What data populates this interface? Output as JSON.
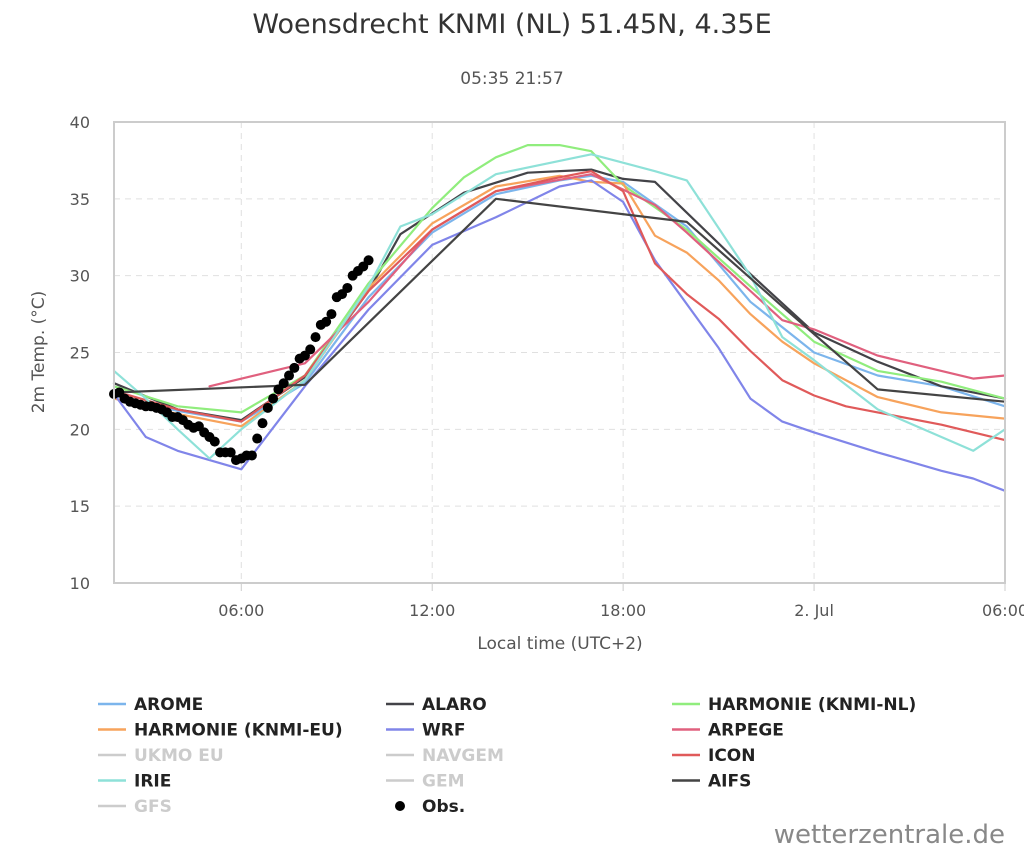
{
  "chart_data": {
    "type": "line",
    "title": "Woensdrecht KNMI (NL) 51.45N, 4.35E",
    "subtitle": "05:35 21:57",
    "xlabel": "Local time (UTC+2)",
    "ylabel": "2m Temp. (°C)",
    "ylim": [
      10,
      40
    ],
    "xlim": [
      "2025-07-01T02:00",
      "2025-07-02T06:00"
    ],
    "x_ticks": [
      {
        "label": "06:00",
        "at": "2025-07-01T06:00"
      },
      {
        "label": "12:00",
        "at": "2025-07-01T12:00"
      },
      {
        "label": "18:00",
        "at": "2025-07-01T18:00"
      },
      {
        "label": "2. Jul",
        "at": "2025-07-02T00:00"
      },
      {
        "label": "06:00",
        "at": "2025-07-02T06:00"
      }
    ],
    "y_ticks": [
      10,
      15,
      20,
      25,
      30,
      35,
      40
    ],
    "grid": true,
    "legend_position": "bottom",
    "credits": "wetterzentrale.de",
    "series": [
      {
        "name": "AROME",
        "color": "#7cb5ec",
        "visible": true,
        "points": [
          [
            "2025-07-01T02:00",
            22.2
          ],
          [
            "2025-07-01T04:00",
            21.2
          ],
          [
            "2025-07-01T06:00",
            20.5
          ],
          [
            "2025-07-01T08:00",
            23.0
          ],
          [
            "2025-07-01T10:00",
            28.6
          ],
          [
            "2025-07-01T12:00",
            32.8
          ],
          [
            "2025-07-01T14:00",
            35.3
          ],
          [
            "2025-07-01T16:00",
            36.2
          ],
          [
            "2025-07-01T17:00",
            36.5
          ],
          [
            "2025-07-01T18:00",
            36.1
          ],
          [
            "2025-07-01T20:00",
            33.2
          ],
          [
            "2025-07-01T22:00",
            28.3
          ],
          [
            "2025-07-02T00:00",
            25.0
          ],
          [
            "2025-07-02T02:00",
            23.5
          ],
          [
            "2025-07-02T04:00",
            22.8
          ],
          [
            "2025-07-02T06:00",
            21.5
          ]
        ]
      },
      {
        "name": "ALARO",
        "color": "#434348",
        "visible": true,
        "points": [
          [
            "2025-07-01T02:00",
            23.0
          ],
          [
            "2025-07-01T04:00",
            21.3
          ],
          [
            "2025-07-01T06:00",
            20.6
          ],
          [
            "2025-07-01T08:00",
            23.4
          ],
          [
            "2025-07-01T10:00",
            29.0
          ],
          [
            "2025-07-01T11:00",
            32.7
          ],
          [
            "2025-07-01T13:00",
            35.4
          ],
          [
            "2025-07-01T15:00",
            36.7
          ],
          [
            "2025-07-01T17:00",
            36.9
          ],
          [
            "2025-07-01T18:00",
            36.3
          ],
          [
            "2025-07-01T19:00",
            36.1
          ],
          [
            "2025-07-01T20:00",
            34.1
          ],
          [
            "2025-07-01T22:00",
            30.1
          ],
          [
            "2025-07-02T00:00",
            26.3
          ],
          [
            "2025-07-02T02:00",
            24.4
          ],
          [
            "2025-07-02T04:00",
            22.8
          ],
          [
            "2025-07-02T06:00",
            22.0
          ]
        ]
      },
      {
        "name": "HARMONIE (KNMI-NL)",
        "color": "#90ed7d",
        "visible": true,
        "points": [
          [
            "2025-07-01T02:00",
            22.8
          ],
          [
            "2025-07-01T04:00",
            21.5
          ],
          [
            "2025-07-01T06:00",
            21.1
          ],
          [
            "2025-07-01T08:00",
            23.5
          ],
          [
            "2025-07-01T10:00",
            29.5
          ],
          [
            "2025-07-01T12:00",
            34.4
          ],
          [
            "2025-07-01T13:00",
            36.4
          ],
          [
            "2025-07-01T14:00",
            37.7
          ],
          [
            "2025-07-01T15:00",
            38.5
          ],
          [
            "2025-07-01T16:00",
            38.5
          ],
          [
            "2025-07-01T17:00",
            38.1
          ],
          [
            "2025-07-01T18:00",
            35.9
          ],
          [
            "2025-07-01T20:00",
            33.0
          ],
          [
            "2025-07-01T22:00",
            29.3
          ],
          [
            "2025-07-02T00:00",
            25.7
          ],
          [
            "2025-07-02T02:00",
            23.8
          ],
          [
            "2025-07-02T04:00",
            23.1
          ],
          [
            "2025-07-02T06:00",
            22.0
          ]
        ]
      },
      {
        "name": "HARMONIE (KNMI-EU)",
        "color": "#f7a35c",
        "visible": true,
        "points": [
          [
            "2025-07-01T02:00",
            22.0
          ],
          [
            "2025-07-01T04:00",
            21.0
          ],
          [
            "2025-07-01T06:00",
            20.2
          ],
          [
            "2025-07-01T08:00",
            23.2
          ],
          [
            "2025-07-01T10:00",
            29.2
          ],
          [
            "2025-07-01T12:00",
            33.4
          ],
          [
            "2025-07-01T14:00",
            35.8
          ],
          [
            "2025-07-01T16:00",
            36.5
          ],
          [
            "2025-07-01T17:00",
            36.1
          ],
          [
            "2025-07-01T18:00",
            36.0
          ],
          [
            "2025-07-01T19:00",
            32.6
          ],
          [
            "2025-07-01T20:00",
            31.5
          ],
          [
            "2025-07-01T21:00",
            29.7
          ],
          [
            "2025-07-01T22:00",
            27.5
          ],
          [
            "2025-07-01T23:00",
            25.7
          ],
          [
            "2025-07-02T00:00",
            24.3
          ],
          [
            "2025-07-02T02:00",
            22.1
          ],
          [
            "2025-07-02T04:00",
            21.1
          ],
          [
            "2025-07-02T06:00",
            20.7
          ]
        ]
      },
      {
        "name": "WRF",
        "color": "#8085e9",
        "visible": true,
        "points": [
          [
            "2025-07-01T02:00",
            22.3
          ],
          [
            "2025-07-01T03:00",
            19.5
          ],
          [
            "2025-07-01T04:00",
            18.6
          ],
          [
            "2025-07-01T06:00",
            17.4
          ],
          [
            "2025-07-01T08:00",
            22.8
          ],
          [
            "2025-07-01T10:00",
            27.8
          ],
          [
            "2025-07-01T12:00",
            32.0
          ],
          [
            "2025-07-01T14:00",
            33.8
          ],
          [
            "2025-07-01T16:00",
            35.8
          ],
          [
            "2025-07-01T17:00",
            36.2
          ],
          [
            "2025-07-01T18:00",
            34.8
          ],
          [
            "2025-07-01T19:00",
            31.0
          ],
          [
            "2025-07-01T21:00",
            25.3
          ],
          [
            "2025-07-01T22:00",
            22.0
          ],
          [
            "2025-07-01T23:00",
            20.5
          ],
          [
            "2025-07-02T00:00",
            19.8
          ],
          [
            "2025-07-02T02:00",
            18.5
          ],
          [
            "2025-07-02T04:00",
            17.3
          ],
          [
            "2025-07-02T05:00",
            16.8
          ],
          [
            "2025-07-02T06:00",
            16.0
          ]
        ]
      },
      {
        "name": "ARPEGE",
        "color": "#e0607e",
        "visible": true,
        "points": [
          [
            "2025-07-01T05:00",
            22.8
          ],
          [
            "2025-07-01T08:00",
            24.3
          ],
          [
            "2025-07-01T10:00",
            28.3
          ],
          [
            "2025-07-01T12:00",
            33.0
          ],
          [
            "2025-07-01T14:00",
            35.5
          ],
          [
            "2025-07-01T17:00",
            36.6
          ],
          [
            "2025-07-01T19:00",
            34.6
          ],
          [
            "2025-07-01T20:00",
            32.8
          ],
          [
            "2025-07-01T22:00",
            29.0
          ],
          [
            "2025-07-01T23:00",
            27.1
          ],
          [
            "2025-07-02T00:00",
            26.5
          ],
          [
            "2025-07-02T02:00",
            24.8
          ],
          [
            "2025-07-02T05:00",
            23.3
          ],
          [
            "2025-07-02T06:00",
            23.5
          ]
        ]
      },
      {
        "name": "UKMO EU",
        "color": "#cccccc",
        "visible": false,
        "points": []
      },
      {
        "name": "NAVGEM",
        "color": "#cccccc",
        "visible": false,
        "points": []
      },
      {
        "name": "ICON",
        "color": "#e05a5a",
        "visible": true,
        "points": [
          [
            "2025-07-01T02:00",
            22.5
          ],
          [
            "2025-07-01T04:00",
            21.3
          ],
          [
            "2025-07-01T06:00",
            20.5
          ],
          [
            "2025-07-01T08:00",
            23.5
          ],
          [
            "2025-07-01T10:00",
            29.0
          ],
          [
            "2025-07-01T12:00",
            33.0
          ],
          [
            "2025-07-01T14:00",
            35.5
          ],
          [
            "2025-07-01T16:00",
            36.4
          ],
          [
            "2025-07-01T17:00",
            36.8
          ],
          [
            "2025-07-01T18:00",
            35.5
          ],
          [
            "2025-07-01T19:00",
            30.8
          ],
          [
            "2025-07-01T20:00",
            28.8
          ],
          [
            "2025-07-01T21:00",
            27.2
          ],
          [
            "2025-07-01T22:00",
            25.1
          ],
          [
            "2025-07-01T23:00",
            23.2
          ],
          [
            "2025-07-02T00:00",
            22.2
          ],
          [
            "2025-07-02T01:00",
            21.5
          ],
          [
            "2025-07-02T02:00",
            21.1
          ],
          [
            "2025-07-02T04:00",
            20.3
          ],
          [
            "2025-07-02T06:00",
            19.3
          ]
        ]
      },
      {
        "name": "IRIE",
        "color": "#8ee1d8",
        "visible": true,
        "points": [
          [
            "2025-07-01T02:00",
            23.8
          ],
          [
            "2025-07-01T03:00",
            22.0
          ],
          [
            "2025-07-01T04:00",
            20.0
          ],
          [
            "2025-07-01T05:00",
            18.1
          ],
          [
            "2025-07-01T06:00",
            20.0
          ],
          [
            "2025-07-01T08:00",
            23.2
          ],
          [
            "2025-07-01T10:00",
            29.3
          ],
          [
            "2025-07-01T11:00",
            33.2
          ],
          [
            "2025-07-01T12:00",
            34.0
          ],
          [
            "2025-07-01T14:00",
            36.6
          ],
          [
            "2025-07-01T17:00",
            37.9
          ],
          [
            "2025-07-01T19:00",
            36.8
          ],
          [
            "2025-07-01T20:00",
            36.2
          ],
          [
            "2025-07-01T22:00",
            30.0
          ],
          [
            "2025-07-01T23:00",
            26.0
          ],
          [
            "2025-07-02T00:00",
            24.5
          ],
          [
            "2025-07-02T02:00",
            21.3
          ],
          [
            "2025-07-02T04:00",
            19.5
          ],
          [
            "2025-07-02T05:00",
            18.6
          ],
          [
            "2025-07-02T06:00",
            20.0
          ]
        ]
      },
      {
        "name": "GEM",
        "color": "#cccccc",
        "visible": false,
        "points": []
      },
      {
        "name": "AIFS",
        "color": "#444444",
        "visible": true,
        "points": [
          [
            "2025-07-01T02:00",
            22.4
          ],
          [
            "2025-07-01T08:00",
            22.9
          ],
          [
            "2025-07-01T14:00",
            35.0
          ],
          [
            "2025-07-01T20:00",
            33.5
          ],
          [
            "2025-07-01T23:00",
            28.0
          ],
          [
            "2025-07-02T02:00",
            22.6
          ],
          [
            "2025-07-02T06:00",
            21.8
          ]
        ]
      },
      {
        "name": "GFS",
        "color": "#cccccc",
        "visible": false,
        "points": []
      },
      {
        "name": "Obs.",
        "color": "#000000",
        "visible": true,
        "marker": "circle",
        "points": [
          [
            "2025-07-01T02:00",
            22.3
          ],
          [
            "2025-07-01T02:10",
            22.4
          ],
          [
            "2025-07-01T02:20",
            22.0
          ],
          [
            "2025-07-01T02:30",
            21.8
          ],
          [
            "2025-07-01T02:40",
            21.7
          ],
          [
            "2025-07-01T02:50",
            21.6
          ],
          [
            "2025-07-01T03:00",
            21.5
          ],
          [
            "2025-07-01T03:10",
            21.5
          ],
          [
            "2025-07-01T03:20",
            21.4
          ],
          [
            "2025-07-01T03:30",
            21.3
          ],
          [
            "2025-07-01T03:40",
            21.1
          ],
          [
            "2025-07-01T03:50",
            20.8
          ],
          [
            "2025-07-01T04:00",
            20.8
          ],
          [
            "2025-07-01T04:10",
            20.6
          ],
          [
            "2025-07-01T04:20",
            20.3
          ],
          [
            "2025-07-01T04:30",
            20.1
          ],
          [
            "2025-07-01T04:40",
            20.2
          ],
          [
            "2025-07-01T04:50",
            19.8
          ],
          [
            "2025-07-01T05:00",
            19.5
          ],
          [
            "2025-07-01T05:10",
            19.2
          ],
          [
            "2025-07-01T05:20",
            18.5
          ],
          [
            "2025-07-01T05:30",
            18.5
          ],
          [
            "2025-07-01T05:40",
            18.5
          ],
          [
            "2025-07-01T05:50",
            18.0
          ],
          [
            "2025-07-01T06:00",
            18.1
          ],
          [
            "2025-07-01T06:10",
            18.3
          ],
          [
            "2025-07-01T06:20",
            18.3
          ],
          [
            "2025-07-01T06:30",
            19.4
          ],
          [
            "2025-07-01T06:40",
            20.4
          ],
          [
            "2025-07-01T06:50",
            21.4
          ],
          [
            "2025-07-01T07:00",
            22.0
          ],
          [
            "2025-07-01T07:10",
            22.6
          ],
          [
            "2025-07-01T07:20",
            23.0
          ],
          [
            "2025-07-01T07:30",
            23.5
          ],
          [
            "2025-07-01T07:40",
            24.0
          ],
          [
            "2025-07-01T07:50",
            24.6
          ],
          [
            "2025-07-01T08:00",
            24.8
          ],
          [
            "2025-07-01T08:10",
            25.2
          ],
          [
            "2025-07-01T08:20",
            26.0
          ],
          [
            "2025-07-01T08:30",
            26.8
          ],
          [
            "2025-07-01T08:40",
            27.0
          ],
          [
            "2025-07-01T08:50",
            27.5
          ],
          [
            "2025-07-01T09:00",
            28.6
          ],
          [
            "2025-07-01T09:10",
            28.8
          ],
          [
            "2025-07-01T09:20",
            29.2
          ],
          [
            "2025-07-01T09:30",
            30.0
          ],
          [
            "2025-07-01T09:40",
            30.3
          ],
          [
            "2025-07-01T09:50",
            30.6
          ],
          [
            "2025-07-01T10:00",
            31.0
          ]
        ]
      }
    ]
  }
}
